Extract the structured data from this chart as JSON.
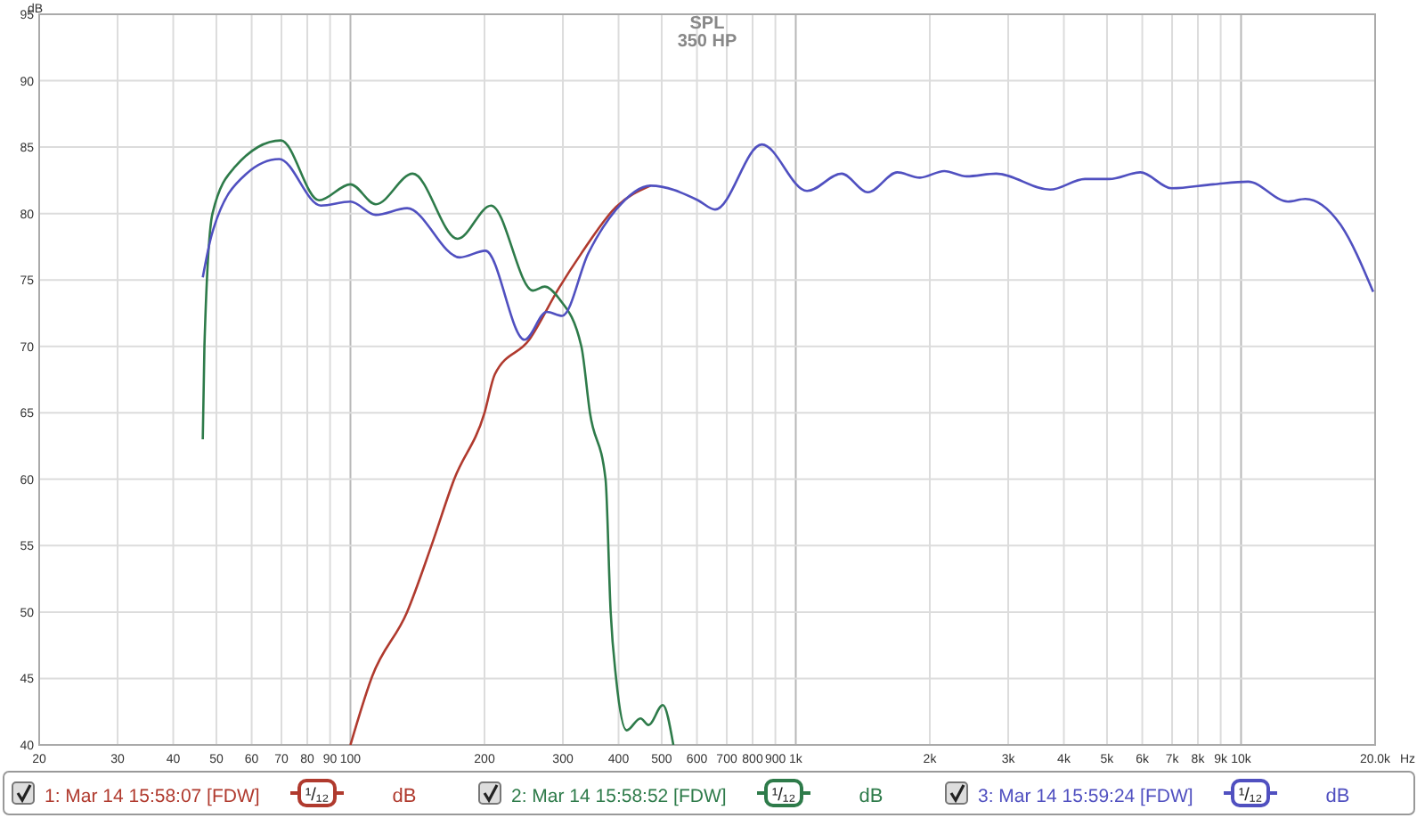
{
  "chart_data": {
    "type": "line",
    "title": "SPL",
    "subtitle": "350 HP",
    "xlabel": "Hz",
    "ylabel": "dB",
    "log": "x",
    "grid": true,
    "legend": "bottom",
    "line_style": "solid",
    "marker": "none",
    "xlim": [
      20,
      20000
    ],
    "ylim": [
      40,
      95
    ],
    "xticks": [
      20,
      30,
      40,
      50,
      60,
      70,
      80,
      90,
      100,
      200,
      300,
      400,
      500,
      600,
      700,
      800,
      900,
      {
        "value": 1000,
        "label": "1k"
      },
      {
        "value": 2000,
        "label": "2k"
      },
      {
        "value": 3000,
        "label": "3k"
      },
      {
        "value": 4000,
        "label": "4k"
      },
      {
        "value": 5000,
        "label": "5k"
      },
      {
        "value": 6000,
        "label": "6k"
      },
      {
        "value": 7000,
        "label": "7k"
      },
      {
        "value": 8000,
        "label": "8k"
      },
      {
        "value": 9000,
        "label": "9k"
      },
      {
        "value": 10000,
        "label": "10k"
      },
      {
        "value": 20000,
        "label": "20.0k"
      }
    ],
    "yticks": [
      40,
      45,
      50,
      55,
      60,
      65,
      70,
      75,
      80,
      85,
      90,
      95
    ],
    "annotations": [
      "¹/₁₂",
      "dB",
      "¹/₁₂",
      "dB",
      "¹/₁₂",
      "dB"
    ],
    "series": [
      {
        "name": "1: Mar 14 15:58:07 [FDW]",
        "color": "#b03a2e",
        "x": [
          100,
          112,
          134,
          152,
          171,
          200,
          211,
          252,
          294,
          330,
          395,
          472
        ],
        "values": [
          40,
          45.2,
          50,
          55,
          60,
          65,
          67.9,
          70.5,
          74.4,
          77,
          80.5,
          82.1
        ]
      },
      {
        "name": "2: Mar 14 15:58:52 [FDW]",
        "color": "#2e7b4a",
        "x": [
          46.6,
          47,
          49,
          55,
          69.8,
          85,
          100,
          114,
          138,
          174,
          207,
          257,
          273,
          294,
          330,
          345,
          374,
          384,
          395,
          417,
          448,
          467,
          503,
          531
        ],
        "values": [
          63,
          70,
          80,
          83.5,
          85.5,
          81,
          82.2,
          80.7,
          83,
          78.1,
          80.6,
          74.2,
          74.5,
          73.6,
          70,
          65,
          60,
          50,
          45,
          41.1,
          42,
          41.5,
          43,
          40
        ]
      },
      {
        "name": "3: Mar 14 15:59:24 [FDW]",
        "color": "#5050c0",
        "x": [
          46.6,
          48.8,
          58.4,
          69.2,
          85.8,
          100,
          114,
          134,
          176,
          201,
          246,
          276,
          299,
          342,
          395,
          472,
          603,
          659,
          839,
          1060,
          1268,
          1452,
          1691,
          1900,
          2155,
          2421,
          2820,
          3725,
          4460,
          5058,
          5940,
          6985,
          8665,
          10370,
          12740,
          13940,
          16690,
          19800
        ],
        "values": [
          75.2,
          78.4,
          83,
          84.1,
          80.6,
          80.9,
          79.9,
          80.4,
          76.7,
          77.2,
          70.5,
          72.6,
          72.3,
          77,
          80.3,
          82.1,
          81,
          80.3,
          85.2,
          81.7,
          83,
          81.6,
          83.1,
          82.7,
          83.2,
          82.8,
          83,
          81.8,
          82.6,
          82.6,
          83.1,
          81.9,
          82.2,
          82.4,
          80.9,
          81.1,
          79.2,
          74.1
        ]
      }
    ]
  }
}
